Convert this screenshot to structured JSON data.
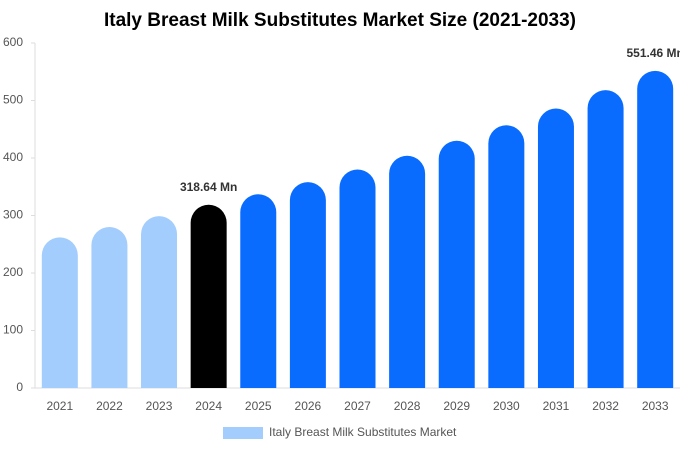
{
  "chart_data": {
    "type": "bar",
    "title": "Italy Breast Milk Substitutes Market Size (2021-2033)",
    "categories": [
      "2021",
      "2022",
      "2023",
      "2024",
      "2025",
      "2026",
      "2027",
      "2028",
      "2029",
      "2030",
      "2031",
      "2032",
      "2033"
    ],
    "series": [
      {
        "name": "Italy Breast Milk Substitutes Market",
        "color": "#a3cdfd",
        "values": [
          262,
          280,
          299,
          318.64,
          337,
          358,
          380,
          404,
          430,
          457,
          486,
          518,
          551.46
        ],
        "value_labels": [
          null,
          null,
          null,
          "318.64 Mn",
          null,
          null,
          null,
          null,
          null,
          null,
          null,
          null,
          "551.46 Mn"
        ],
        "colors": [
          "#a3cdfd",
          "#a3cdfd",
          "#a3cdfd",
          "#000000",
          "#0a6cff",
          "#0a6cff",
          "#0a6cff",
          "#0a6cff",
          "#0a6cff",
          "#0a6cff",
          "#0a6cff",
          "#0a6cff",
          "#0a6cff"
        ]
      }
    ],
    "ylim": [
      0,
      600
    ],
    "yticks": [
      0,
      100,
      200,
      300,
      400,
      500,
      600
    ],
    "grid": false,
    "legend": "bottom"
  }
}
